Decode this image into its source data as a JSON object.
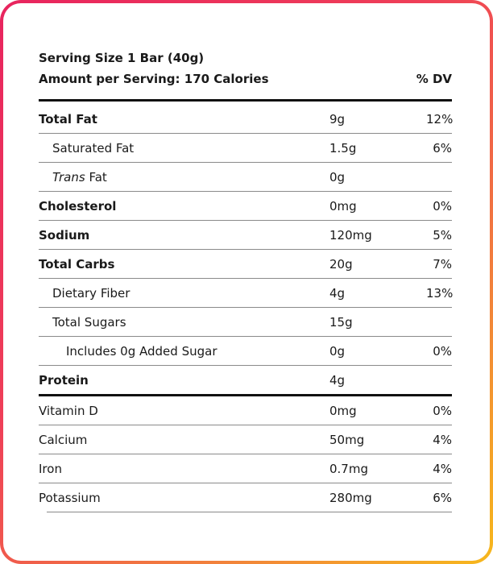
{
  "serving_size": "Serving Size 1 Bar (40g)",
  "amount_per_serving": "Amount per Serving: 170 Calories",
  "dv_header": "% DV",
  "nutrients": [
    {
      "name": "Total Fat",
      "amount": "9g",
      "dv": "12%"
    },
    {
      "name": "Saturated Fat",
      "amount": "1.5g",
      "dv": "6%"
    },
    {
      "name_italic": "Trans",
      "name_rest": " Fat",
      "amount": "0g",
      "dv": ""
    },
    {
      "name": "Cholesterol",
      "amount": "0mg",
      "dv": "0%"
    },
    {
      "name": "Sodium",
      "amount": "120mg",
      "dv": "5%"
    },
    {
      "name": "Total Carbs",
      "amount": "20g",
      "dv": "7%"
    },
    {
      "name": "Dietary Fiber",
      "amount": "4g",
      "dv": "13%"
    },
    {
      "name": "Total Sugars",
      "amount": "15g",
      "dv": ""
    },
    {
      "name": "Includes 0g Added Sugar",
      "amount": "0g",
      "dv": "0%"
    },
    {
      "name": "Protein",
      "amount": "4g",
      "dv": ""
    }
  ],
  "vitamins": [
    {
      "name": "Vitamin D",
      "amount": "0mg",
      "dv": "0%"
    },
    {
      "name": "Calcium",
      "amount": "50mg",
      "dv": "4%"
    },
    {
      "name": "Iron",
      "amount": "0.7mg",
      "dv": "4%"
    },
    {
      "name": "Potassium",
      "amount": "280mg",
      "dv": "6%"
    }
  ],
  "colors": {
    "frame_gradient_start": "#e8245e",
    "frame_gradient_end": "#f6b81c",
    "rule": "#111111"
  }
}
